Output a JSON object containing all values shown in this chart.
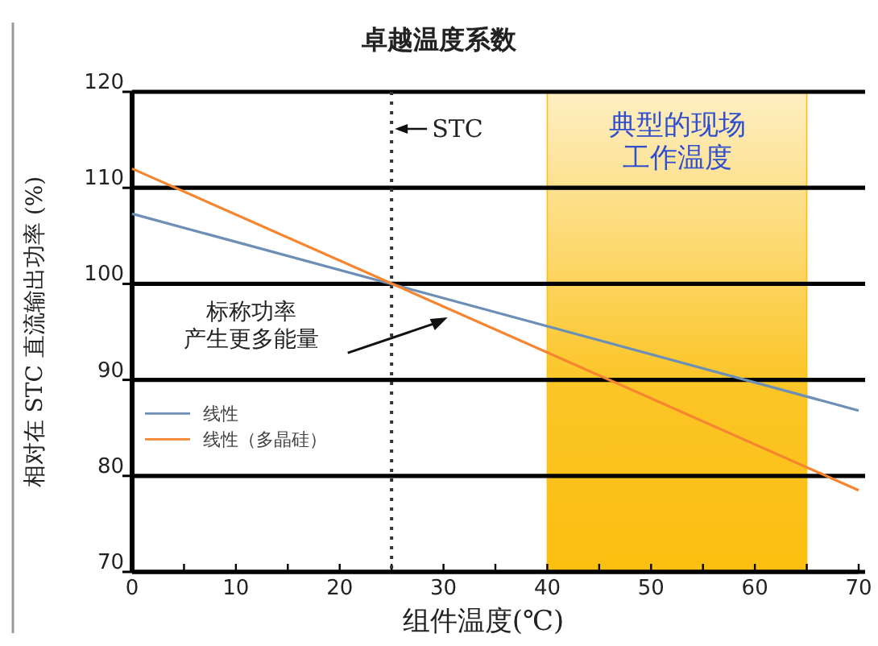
{
  "chart_data": {
    "type": "line",
    "title": "卓越温度系数",
    "xlabel": "组件温度(℃)",
    "ylabel": "相对在 STC 直流输出功率 (%)",
    "series": [
      {
        "name": "线性",
        "color": "#6d8fb5",
        "values": [
          107.3,
          86.8
        ]
      },
      {
        "name": "线性（多晶硅）",
        "color": "#f5852f",
        "values": [
          112,
          78.5
        ]
      }
    ],
    "x": [
      0,
      70
    ],
    "xlim": [
      0,
      70
    ],
    "ylim": [
      70,
      120
    ],
    "xticks": [
      0,
      {
        "value": 5,
        "label": null
      },
      10,
      {
        "value": 15,
        "label": null
      },
      20,
      {
        "value": 25,
        "label": null
      },
      30,
      {
        "value": 35,
        "label": null
      },
      40,
      {
        "value": 45,
        "label": null
      },
      50,
      {
        "value": 55,
        "label": null
      },
      60,
      {
        "value": 65,
        "label": null
      },
      70
    ],
    "yticks": [
      70,
      80,
      90,
      100,
      110,
      120
    ],
    "grid": "y",
    "legend": "bottom left",
    "marker": "none",
    "line_style": "solid",
    "ref_lines": [
      {
        "axis": "x",
        "value": 25,
        "label": "STC",
        "color": "#333333",
        "line_style": "dotted"
      }
    ],
    "bands": [
      {
        "axis": "x",
        "from": 40,
        "to": 65,
        "label": "典型的现场工作温度",
        "color": "#fbbf10"
      }
    ],
    "annotations": [
      {
        "text": "标称功率产生更多能量",
        "x": 30.4,
        "y": 96.5
      }
    ]
  }
}
